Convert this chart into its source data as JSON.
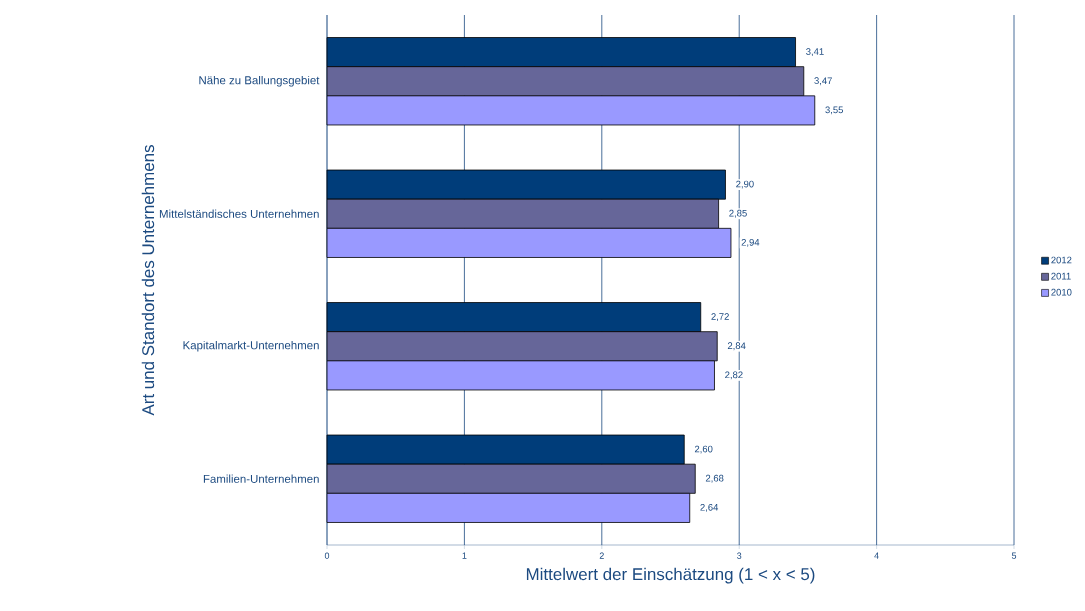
{
  "chart_data": {
    "type": "bar",
    "orientation": "horizontal",
    "xlabel": "Mittelwert der Einschätzung (1 < x < 5)",
    "ylabel": "Art und Standort des Unternehmens",
    "categories": [
      "Nähe zu Ballungsgebiet",
      "Mittelständisches Unternehmen",
      "Kapitalmarkt-Unternehmen",
      "Familien-Unternehmen"
    ],
    "series": [
      {
        "name": "2012",
        "color": "#003d7a",
        "values": [
          3.41,
          2.9,
          2.72,
          2.6
        ],
        "value_labels": [
          "3,41",
          "2,90",
          "2,72",
          "2,60"
        ]
      },
      {
        "name": "2011",
        "color": "#666699",
        "values": [
          3.47,
          2.85,
          2.84,
          2.68
        ],
        "value_labels": [
          "3,47",
          "2,85",
          "2,84",
          "2,68"
        ]
      },
      {
        "name": "2010",
        "color": "#9999ff",
        "values": [
          3.55,
          2.94,
          2.82,
          2.64
        ],
        "value_labels": [
          "3,55",
          "2,94",
          "2,82",
          "2,64"
        ]
      }
    ],
    "xlim": [
      0,
      5
    ],
    "xticks": [
      0,
      1,
      2,
      3,
      4,
      5
    ],
    "grid": "x",
    "legend": "right"
  }
}
